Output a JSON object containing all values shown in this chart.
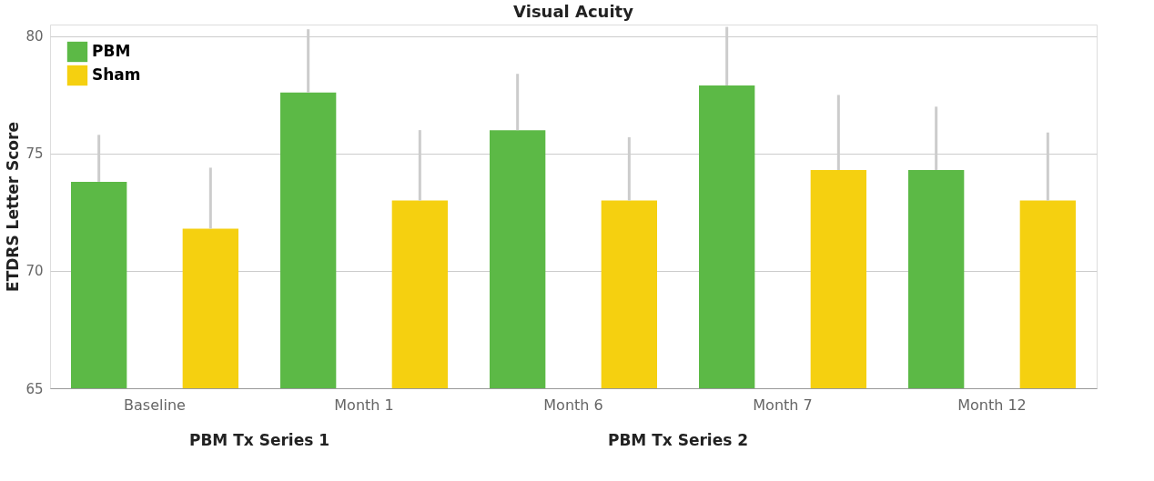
{
  "chart_data": {
    "type": "bar",
    "title": "Visual Acuity",
    "ylabel": "ETDRS Letter Score",
    "categories": [
      "Baseline",
      "Month 1",
      "Month 6",
      "Month 7",
      "Month 12"
    ],
    "series": [
      {
        "name": "PBM",
        "color": "#5cb946",
        "values": [
          73.8,
          77.6,
          76.0,
          77.9,
          74.3
        ],
        "errors": [
          [
            73.8,
            75.8
          ],
          [
            77.6,
            80.3
          ],
          [
            76.0,
            78.4
          ],
          [
            77.9,
            80.4
          ],
          [
            74.3,
            77.0
          ]
        ]
      },
      {
        "name": "Sham",
        "color": "#f5d010",
        "values": [
          71.8,
          73.0,
          73.0,
          74.3,
          73.0
        ],
        "errors": [
          [
            71.8,
            74.4
          ],
          [
            73.0,
            76.0
          ],
          [
            73.0,
            75.7
          ],
          [
            74.3,
            77.5
          ],
          [
            73.0,
            75.9
          ]
        ]
      }
    ],
    "ylim": [
      65,
      80.5
    ],
    "yticks": [
      65,
      70,
      75,
      80
    ],
    "grid": "y",
    "legend": "top left",
    "annotations": [
      "PBM Tx Series 1",
      "PBM Tx Series 2"
    ]
  }
}
